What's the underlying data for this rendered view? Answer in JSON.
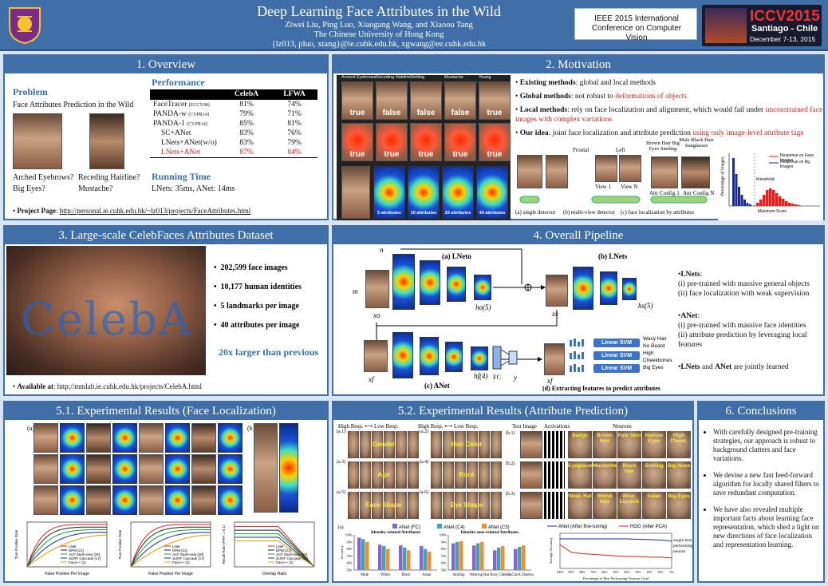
{
  "header": {
    "title": "Deep Learning Face Attributes in the Wild",
    "authors": "Ziwei Liu, Ping Luo, Xiaogang Wang, and Xiaoou Tang",
    "university": "The Chinese University of Hong Kong",
    "emails": "{lz013, pluo, xtang}@ie.cuhk.edu.hk, xgwang@ee.cuhk.edu.hk",
    "conference_line1": "IEEE 2015 International",
    "conference_line2": "Conference on Computer Vision",
    "iccv_title": "ICCV2015",
    "iccv_location": "Santiago - Chile",
    "iccv_dates": "December 7-13, 2015"
  },
  "overview": {
    "title": "1. Overview",
    "problem_heading": "Problem",
    "problem_text": "Face Attributes Prediction in the Wild",
    "q1a": "Arched Eyebrows?",
    "q1b": "Big Eyes?",
    "q2a": "Receding Hairline?",
    "q2b": "Mustache?",
    "performance_heading": "Performance",
    "table_headers": [
      "",
      "CelebA",
      "LFWA"
    ],
    "table_rows": [
      {
        "method": "FaceTracer",
        "cite": "[ECCV08]",
        "celeba": "81%",
        "lfwa": "74%",
        "highlight": false
      },
      {
        "method": "PANDA-w",
        "cite": "[CVPR14]",
        "celeba": "79%",
        "lfwa": "71%",
        "highlight": false
      },
      {
        "method": "PANDA-1",
        "cite": "[CVPR14]",
        "celeba": "85%",
        "lfwa": "81%",
        "highlight": false
      },
      {
        "method": "SC+ANet",
        "cite": "",
        "celeba": "83%",
        "lfwa": "76%",
        "highlight": false
      },
      {
        "method": "LNets+ANet(w/o)",
        "cite": "",
        "celeba": "83%",
        "lfwa": "79%",
        "highlight": false
      },
      {
        "method": "LNets+ANet",
        "cite": "",
        "celeba": "87%",
        "lfwa": "84%",
        "highlight": true
      }
    ],
    "running_heading": "Running Time",
    "running_text": "LNets: 35ms,   ANet: 14ms",
    "project_label": "Project Page",
    "project_url": "http://personal.ie.cuhk.edu.hk/~lz013/projects/FaceAttributes.html"
  },
  "motivation": {
    "title": "2. Motivation",
    "col_labels": [
      "Arched Eyebrows",
      "Receding Hairline",
      "Smiling",
      "Mustache",
      "Young"
    ],
    "row_results": [
      "true",
      "false",
      "false",
      "false",
      "true"
    ],
    "row2_results": [
      "true",
      "true",
      "true",
      "true",
      "true"
    ],
    "heat_labels": [
      "5 attributes",
      "10 attributes",
      "20 attributes",
      "40 attributes"
    ],
    "b1_bold": "Existing methods",
    "b1_rest": ": global and local methods",
    "b2_bold": "Global methods",
    "b2_rest": ": not robust to ",
    "b2_red": "deformations of objects",
    "b3_bold": "Local methods",
    "b3_rest": ": rely on face localization and alignment, which would fail under ",
    "b3_red": "unconstrained face images with complex variations",
    "b4_bold": "Our idea",
    "b4_rest": ":  joint face localization and attribute prediction ",
    "b4_red": "using only image-level attribute tags",
    "diag_labels": [
      "Frontal",
      "Left",
      "View 1",
      "View N",
      "Brown Hair Big Eyes Smiling",
      "Male Black Hair Sunglasses",
      "Attr Config 1",
      "Attr Config N"
    ],
    "diag_captions": [
      "(a) single detector",
      "(b) multi-view detector",
      "(c) face localization by attributes"
    ],
    "hist_legend1": "Response on Face Images",
    "hist_legend2": "Response on Bg. Images",
    "hist_threshold": "threshold",
    "hist_xlabel": "Maximum Score",
    "hist_ylabel": "Percentage of Images"
  },
  "dataset": {
    "title": "3. Large-scale CelebFaces Attributes Dataset",
    "watermark": "CelebA",
    "facts": [
      "202,599 face images",
      "10,177 human identities",
      "5 landmarks per image",
      "40 attributes per image"
    ],
    "highlight": "20x larger than previous",
    "available_label": "Available at",
    "available_url": "http://mmlab.ie.cuhk.edu.hk/projects/CelebA.html"
  },
  "pipeline": {
    "title": "4. Overall Pipeline",
    "lnet0": "(a) LNeto",
    "lnets": "(b) LNets",
    "anet": "(c) ANet",
    "extract": "(d) Extracting features to predict attributes",
    "svm": [
      "Linear SVM",
      "Linear SVM",
      "Linear SVM"
    ],
    "outputs": [
      "Wavy Hair",
      "No Beard",
      "High Cheekbones",
      "Big Eyes"
    ],
    "symbols": [
      "m",
      "n",
      "xo",
      "ho(5)",
      "xs",
      "hs(5)",
      "xf",
      "hf(4)",
      "FC",
      "y",
      "xf"
    ],
    "lnets_heading": "LNets",
    "lnets_1": "(i) pre-trained with massive general objects",
    "lnets_2": "(ii) face localization with weak supervision",
    "anet_heading": "ANet",
    "anet_1": "(i) pre-trained with massive face identities",
    "anet_2": "(ii) attribute prediction by leveraging local features",
    "joint_a": "LNets",
    "joint_b": " and ",
    "joint_c": "ANet",
    "joint_d": " are jointly learned"
  },
  "exp1": {
    "title": "5.1. Experimental Results (Face Localization)",
    "panel_labels": [
      "(a)",
      "(b)"
    ],
    "legend": [
      "LNet",
      "DPM [21]",
      "ACF Multi-view [28]",
      "SURF Cascade [17]",
      "Face++ [1]"
    ],
    "plot_xlabels": [
      "False Positive Per Image",
      "False Positive Per Image",
      "Overlap Ratio"
    ],
    "plot_ylabels": [
      "True Positive Rate",
      "True Positive Rate",
      "Recall Rate (FPPI = 0.1)"
    ]
  },
  "exp2": {
    "title": "5.2. Experimental Results (Attribute Prediction)",
    "hi": "High Resp.",
    "lo": "Low Resp.",
    "test_image": "Test Image",
    "activations": "Activations",
    "neurons": "Neurons",
    "attr_labels": [
      "Gender",
      "Hair Color",
      "Age",
      "Race",
      "Face Shape",
      "Eye Shape"
    ],
    "attr_ids": [
      "(a.1)",
      "(a.2)",
      "(a.3)",
      "(a.4)",
      "(a.5)",
      "(a.6)"
    ],
    "b_ids": [
      "(b.1)",
      "(b.2)",
      "(b.3)"
    ],
    "neuron_row1": [
      "Bangs",
      "Brown Hair",
      "Pale Skin",
      "Narrow Eyes",
      "High Cheek."
    ],
    "neuron_row2": [
      "Eyeglasses",
      "Mustache",
      "Black Hair",
      "Smiling",
      "Big Nose"
    ],
    "neuron_row3": [
      "Wear. Hat",
      "Blond Hair",
      "Wear. Lipstick",
      "Asian",
      "Big Eyes"
    ],
    "bar_panel_label": "(a)",
    "bar_legend": [
      "ANet (FC)",
      "ANet (C4)",
      "ANet (C3)"
    ],
    "bar_title1": "Identity-related Attributes",
    "bar_title2": "Identity-non-related Attributes",
    "bar_ylabel": "Accuracy",
    "line_legend": [
      "ANet (After fine-tuning)",
      "HOG (After PCA)"
    ],
    "line_note": "single best performing neuron",
    "line_xlabel": "Percentage of Best Performing Neurons Used",
    "line_ylabel": "Average Accuracy"
  },
  "conclusions": {
    "title": "6. Conclusions",
    "items": [
      "With carefully designed pre-training strategies, our approach is robust to background clutters and face variations.",
      "We devise a new fast feed-forward algorithm for locally shared filters to save redundant computation.",
      "We have also revealed multiple important facts about learning face representation, which shed a light on new directions of face localization and representation learning."
    ]
  },
  "chart_data": [
    {
      "type": "bar",
      "title": "Identity-related Attributes",
      "ylabel": "Accuracy",
      "categories": [
        "Male",
        "White",
        "Black",
        "Asian"
      ],
      "ylim": [
        50,
        100
      ],
      "series": [
        {
          "name": "ANet (FC)",
          "values": [
            96,
            86,
            85,
            84
          ]
        },
        {
          "name": "ANet (C4)",
          "values": [
            94,
            84,
            82,
            80
          ]
        },
        {
          "name": "ANet (C3)",
          "values": [
            90,
            80,
            78,
            76
          ]
        }
      ]
    },
    {
      "type": "bar",
      "title": "Identity-non-related Attributes",
      "ylabel": "",
      "categories": [
        "Smiling",
        "Wearing Hat",
        "Rosy Cheeks",
        "5oClock Shadow"
      ],
      "ylim": [
        50,
        100
      ],
      "series": [
        {
          "name": "ANet (FC)",
          "values": [
            88,
            85,
            78,
            80
          ]
        },
        {
          "name": "ANet (C4)",
          "values": [
            90,
            88,
            82,
            83
          ]
        },
        {
          "name": "ANet (C3)",
          "values": [
            91,
            90,
            84,
            85
          ]
        }
      ]
    },
    {
      "type": "line",
      "xlabel": "Percentage of Best Performing Neurons Used",
      "ylabel": "Average Accuracy",
      "categories": [
        "100%",
        "90%",
        "80%",
        "70%",
        "60%",
        "50%",
        "40%",
        "30%",
        "20%",
        "10%",
        "0%"
      ],
      "ylim": [
        50,
        100
      ],
      "series": [
        {
          "name": "ANet (After fine-tuning)",
          "values": [
            92,
            92,
            92,
            92,
            92,
            92,
            92,
            91.5,
            91,
            90.5,
            89
          ]
        },
        {
          "name": "HOG (After PCA)",
          "values": [
            84,
            73,
            71,
            70,
            69,
            68,
            67,
            67,
            66,
            66,
            65
          ]
        }
      ]
    }
  ]
}
